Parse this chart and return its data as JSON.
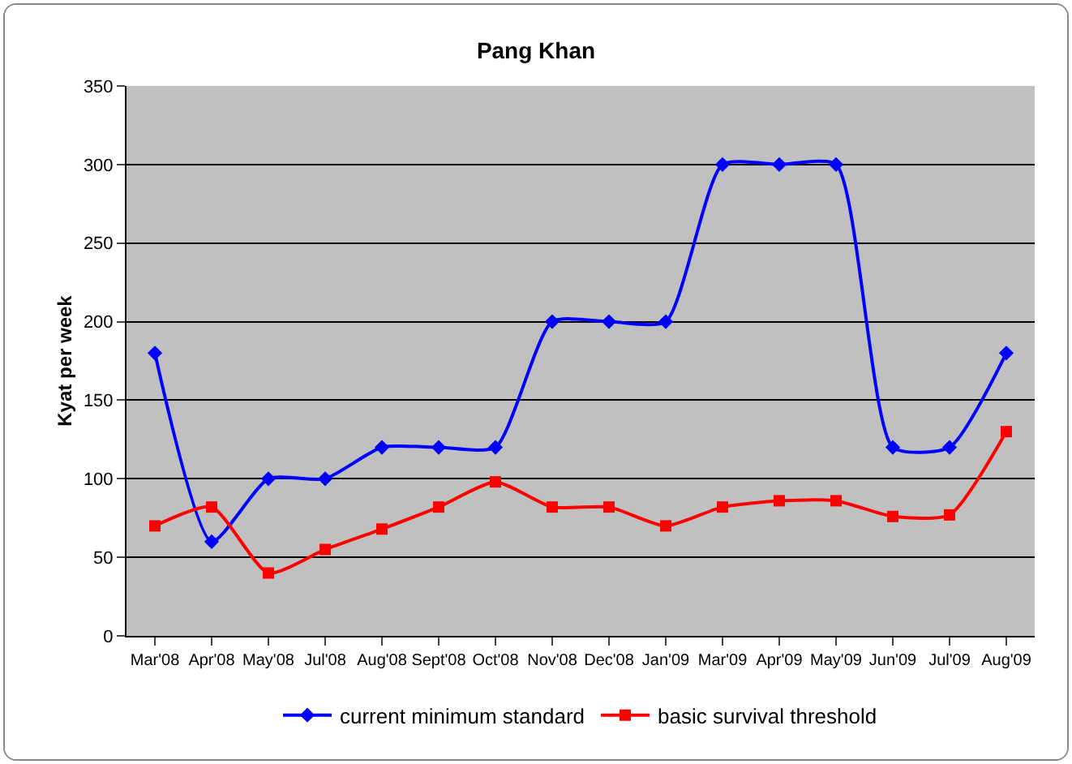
{
  "chart_data": {
    "type": "line",
    "title": "Pang Khan",
    "ylabel": "Kyat per week",
    "categories": [
      "Mar'08",
      "Apr'08",
      "May'08",
      "Jul'08",
      "Aug'08",
      "Sept'08",
      "Oct'08",
      "Nov'08",
      "Dec'08",
      "Jan'09",
      "Mar'09",
      "Apr'09",
      "May'09",
      "Jun'09",
      "Jul'09",
      "Aug'09"
    ],
    "series": [
      {
        "name": "current minimum standard",
        "color": "#0000ff",
        "marker": "diamond",
        "values": [
          180,
          60,
          100,
          100,
          120,
          120,
          120,
          200,
          200,
          200,
          300,
          300,
          300,
          120,
          120,
          180
        ]
      },
      {
        "name": "basic survival threshold",
        "color": "#ff0000",
        "marker": "square",
        "values": [
          70,
          82,
          40,
          55,
          68,
          82,
          98,
          82,
          82,
          70,
          82,
          86,
          86,
          76,
          77,
          130
        ]
      }
    ],
    "ylim": [
      0,
      350
    ],
    "yticks": [
      0,
      50,
      100,
      150,
      200,
      250,
      300,
      350
    ],
    "grid": "y",
    "legend": "bottom",
    "line_style": "solid"
  }
}
